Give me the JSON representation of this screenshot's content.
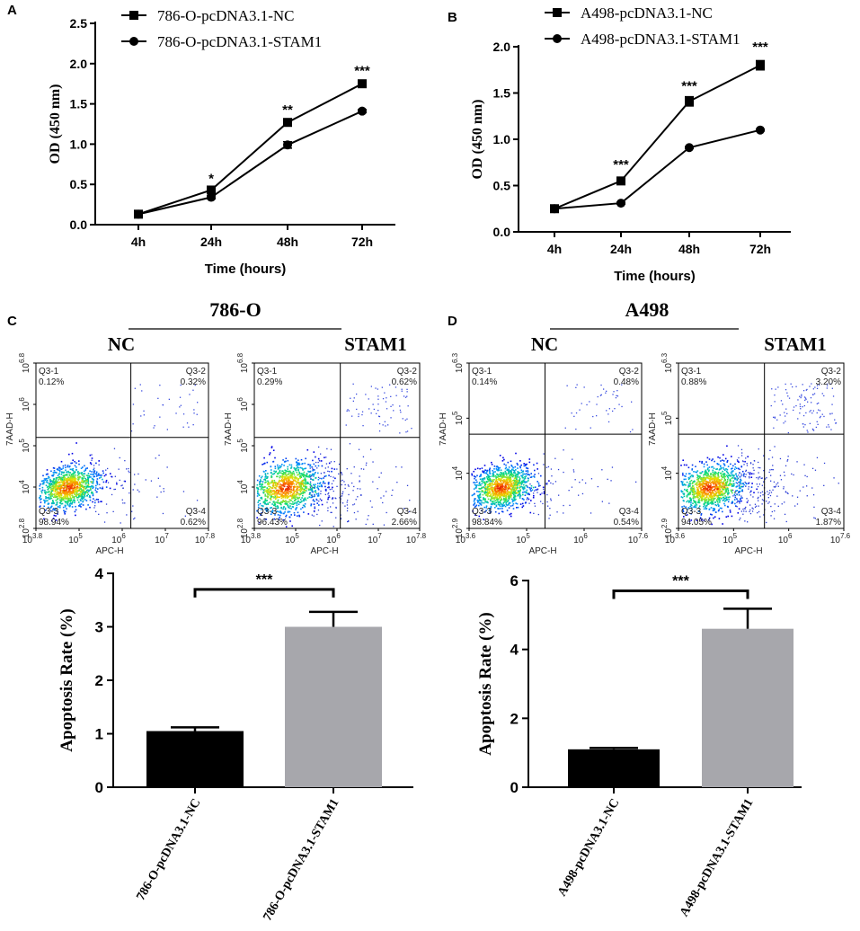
{
  "chart_data": [
    {
      "id": "A",
      "panel_label": "A",
      "type": "line",
      "title": "",
      "xlabel": "Time (hours)",
      "ylabel": "OD (450 nm)",
      "categories": [
        "4h",
        "24h",
        "48h",
        "72h"
      ],
      "ylim": [
        0,
        2.5
      ],
      "yticks": [
        "0.0",
        "0.5",
        "1.0",
        "1.5",
        "2.0",
        "2.5"
      ],
      "series": [
        {
          "name": "786-O-pcDNA3.1-NC",
          "marker": "square",
          "values": [
            0.13,
            0.43,
            1.27,
            1.75
          ],
          "errors": [
            0,
            0.02,
            0.03,
            0.02
          ]
        },
        {
          "name": "786-O-pcDNA3.1-STAM1",
          "marker": "circle",
          "values": [
            0.13,
            0.34,
            0.99,
            1.41
          ],
          "errors": [
            0,
            0.02,
            0.04,
            0.02
          ]
        }
      ],
      "significance": [
        {
          "category": "24h",
          "label": "*",
          "y": 0.52
        },
        {
          "category": "48h",
          "label": "**",
          "y": 1.37
        },
        {
          "category": "72h",
          "label": "***",
          "y": 1.86
        }
      ]
    },
    {
      "id": "B",
      "panel_label": "B",
      "type": "line",
      "title": "",
      "xlabel": "Time (hours)",
      "ylabel": "OD (450 nm)",
      "categories": [
        "4h",
        "24h",
        "48h",
        "72h"
      ],
      "ylim": [
        0,
        2.0
      ],
      "yticks": [
        "0.0",
        "0.5",
        "1.0",
        "1.5",
        "2.0"
      ],
      "series": [
        {
          "name": "A498-pcDNA3.1-NC",
          "marker": "square",
          "values": [
            0.25,
            0.55,
            1.41,
            1.8
          ],
          "errors": [
            0,
            0.02,
            0.05,
            0.05
          ]
        },
        {
          "name": "A498-pcDNA3.1-STAM1",
          "marker": "circle",
          "values": [
            0.25,
            0.31,
            0.91,
            1.1
          ],
          "errors": [
            0,
            0.01,
            0.01,
            0.01
          ]
        }
      ],
      "significance": [
        {
          "category": "24h",
          "label": "***",
          "y": 0.68
        },
        {
          "category": "48h",
          "label": "***",
          "y": 1.53
        },
        {
          "category": "72h",
          "label": "***",
          "y": 1.95
        }
      ]
    },
    {
      "id": "C",
      "panel_label": "C",
      "type": "bar",
      "group_title": "786-O",
      "title": "",
      "xlabel": "",
      "ylabel": "Apoptosis Rate (%)",
      "categories": [
        "786-O-pcDNA3.1-NC",
        "786-O-pcDNA3.1-STAM1"
      ],
      "values": [
        1.05,
        3.0
      ],
      "errors": [
        0.07,
        0.28
      ],
      "bar_colors": [
        "#000000",
        "#a7a7ac"
      ],
      "ylim": [
        0,
        4
      ],
      "yticks": [
        "0",
        "1",
        "2",
        "3",
        "4"
      ],
      "significance": {
        "label": "***",
        "y": 3.7
      },
      "flow_plots": [
        {
          "title": "NC",
          "q1": "Q3-1",
          "q1_value": "0.12%",
          "q2": "Q3-2",
          "q2_value": "0.32%",
          "q3": "Q3-3",
          "q3_value": "98.94%",
          "q4": "Q3-4",
          "q4_value": "0.62%",
          "spread": 0.9,
          "upper": 0.5,
          "tail": 0.4
        },
        {
          "title": "STAM1",
          "q1": "Q3-1",
          "q1_value": "0.29%",
          "q2": "Q3-2",
          "q2_value": "0.62%",
          "q3": "Q3-3",
          "q3_value": "96.43%",
          "q4": "Q3-4",
          "q4_value": "2.66%",
          "spread": 1.1,
          "upper": 1.0,
          "tail": 1.0
        }
      ],
      "flow_axes": {
        "xlabel": "APC-H",
        "ylabel": "7AAD-H",
        "x_base": "10",
        "x_exps": [
          "3.8",
          "5",
          "6",
          "7",
          "7.8"
        ],
        "y_exps": [
          "2.8",
          "4",
          "5",
          "6",
          "6.8"
        ]
      }
    },
    {
      "id": "D",
      "panel_label": "D",
      "type": "bar",
      "group_title": "A498",
      "title": "",
      "xlabel": "",
      "ylabel": "Apoptosis Rate (%)",
      "categories": [
        "A498-pcDNA3.1-NC",
        "A498-pcDNA3.1-STAM1"
      ],
      "values": [
        1.1,
        4.6
      ],
      "errors": [
        0.04,
        0.58
      ],
      "bar_colors": [
        "#000000",
        "#a7a7ac"
      ],
      "ylim": [
        0,
        6
      ],
      "yticks": [
        "0",
        "2",
        "4",
        "6"
      ],
      "significance": {
        "label": "***",
        "y": 5.7
      },
      "flow_plots": [
        {
          "title": "NC",
          "q1": "Q3-1",
          "q1_value": "0.14%",
          "q2": "Q3-2",
          "q2_value": "0.48%",
          "q3": "Q3-3",
          "q3_value": "98.84%",
          "q4": "Q3-4",
          "q4_value": "0.54%",
          "spread": 0.9,
          "upper": 0.6,
          "tail": 0.4
        },
        {
          "title": "STAM1",
          "q1": "Q3-1",
          "q1_value": "0.88%",
          "q2": "Q3-2",
          "q2_value": "3.20%",
          "q3": "Q3-3",
          "q3_value": "94.05%",
          "q4": "Q3-4",
          "q4_value": "1.87%",
          "spread": 1.0,
          "upper": 1.6,
          "tail": 1.2
        }
      ],
      "flow_axes": {
        "xlabel": "APC-H",
        "ylabel": "7AAD-H",
        "x_base": "10",
        "x_exps": [
          "3.6",
          "5",
          "6",
          "7.6"
        ],
        "y_exps": [
          "2.9",
          "4",
          "5",
          "6.3"
        ]
      }
    }
  ]
}
